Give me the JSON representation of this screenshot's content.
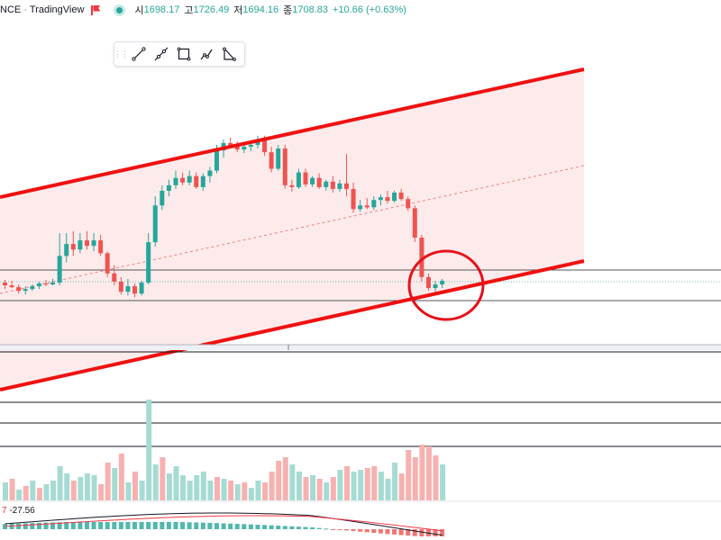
{
  "header": {
    "symbol_fragment": "NCE",
    "separator": "·",
    "source": "TradingView",
    "open_label": "시",
    "open_value": "1698.17",
    "high_label": "고",
    "high_value": "1726.49",
    "low_label": "저",
    "low_value": "1694.16",
    "close_label": "종",
    "close_value": "1708.83",
    "change": "+10.66 (+0.63%)"
  },
  "drawing_toolbar": {
    "tools": [
      "trend-line-icon",
      "ray-icon",
      "rectangle-icon",
      "path-icon",
      "triangle-icon"
    ]
  },
  "macd": {
    "prefix": "7",
    "value": "-27.56"
  },
  "colors": {
    "up": "#26a69a",
    "down": "#ef5350",
    "channel": "#ef1111",
    "channel_fill": "#fde7e7",
    "circle": "#e8101a"
  },
  "candles": [
    [
      1706,
      1709,
      1699,
      1703
    ],
    [
      1703,
      1708,
      1700,
      1701
    ],
    [
      1701,
      1704,
      1694,
      1697
    ],
    [
      1697,
      1702,
      1693,
      1699
    ],
    [
      1699,
      1704,
      1697,
      1702
    ],
    [
      1702,
      1707,
      1699,
      1705
    ],
    [
      1705,
      1709,
      1702,
      1704
    ],
    [
      1704,
      1710,
      1703,
      1706
    ],
    [
      1706,
      1760,
      1703,
      1735
    ],
    [
      1735,
      1760,
      1728,
      1748
    ],
    [
      1748,
      1762,
      1735,
      1742
    ],
    [
      1742,
      1760,
      1738,
      1752
    ],
    [
      1752,
      1762,
      1742,
      1746
    ],
    [
      1746,
      1760,
      1740,
      1752
    ],
    [
      1752,
      1758,
      1735,
      1738
    ],
    [
      1738,
      1740,
      1712,
      1716
    ],
    [
      1716,
      1725,
      1703,
      1707
    ],
    [
      1707,
      1712,
      1693,
      1696
    ],
    [
      1696,
      1710,
      1692,
      1702
    ],
    [
      1702,
      1705,
      1690,
      1694
    ],
    [
      1694,
      1708,
      1692,
      1706
    ],
    [
      1706,
      1760,
      1704,
      1750
    ],
    [
      1750,
      1800,
      1745,
      1790
    ],
    [
      1790,
      1812,
      1785,
      1806
    ],
    [
      1806,
      1818,
      1800,
      1812
    ],
    [
      1812,
      1828,
      1808,
      1820
    ],
    [
      1820,
      1826,
      1812,
      1815
    ],
    [
      1815,
      1828,
      1812,
      1822
    ],
    [
      1822,
      1826,
      1808,
      1810
    ],
    [
      1810,
      1825,
      1806,
      1822
    ],
    [
      1822,
      1832,
      1815,
      1828
    ],
    [
      1828,
      1856,
      1825,
      1850
    ],
    [
      1850,
      1862,
      1842,
      1858
    ],
    [
      1858,
      1864,
      1852,
      1855
    ],
    [
      1855,
      1860,
      1848,
      1851
    ],
    [
      1851,
      1858,
      1847,
      1854
    ],
    [
      1854,
      1860,
      1849,
      1856
    ],
    [
      1856,
      1866,
      1852,
      1862
    ],
    [
      1862,
      1866,
      1844,
      1848
    ],
    [
      1848,
      1854,
      1826,
      1830
    ],
    [
      1830,
      1856,
      1828,
      1852
    ],
    [
      1852,
      1856,
      1808,
      1812
    ],
    [
      1812,
      1818,
      1805,
      1810
    ],
    [
      1810,
      1830,
      1808,
      1826
    ],
    [
      1826,
      1830,
      1810,
      1813
    ],
    [
      1813,
      1822,
      1810,
      1820
    ],
    [
      1820,
      1825,
      1808,
      1810
    ],
    [
      1810,
      1818,
      1806,
      1816
    ],
    [
      1816,
      1822,
      1804,
      1808
    ],
    [
      1808,
      1818,
      1805,
      1814
    ],
    [
      1814,
      1846,
      1800,
      1808
    ],
    [
      1808,
      1815,
      1782,
      1786
    ],
    [
      1786,
      1796,
      1783,
      1790
    ],
    [
      1790,
      1798,
      1786,
      1788
    ],
    [
      1788,
      1800,
      1785,
      1796
    ],
    [
      1796,
      1802,
      1790,
      1799
    ],
    [
      1799,
      1806,
      1792,
      1795
    ],
    [
      1795,
      1806,
      1793,
      1804
    ],
    [
      1804,
      1808,
      1795,
      1797
    ],
    [
      1797,
      1800,
      1784,
      1787
    ],
    [
      1787,
      1790,
      1750,
      1755
    ],
    [
      1755,
      1758,
      1707,
      1712
    ],
    [
      1712,
      1716,
      1697,
      1700
    ],
    [
      1700,
      1708,
      1696,
      1704
    ],
    [
      1704,
      1710,
      1700,
      1708
    ]
  ],
  "volume": [
    [
      20,
      "u"
    ],
    [
      24,
      "d"
    ],
    [
      12,
      "u"
    ],
    [
      16,
      "d"
    ],
    [
      22,
      "u"
    ],
    [
      14,
      "d"
    ],
    [
      18,
      "u"
    ],
    [
      22,
      "u"
    ],
    [
      38,
      "u"
    ],
    [
      30,
      "u"
    ],
    [
      22,
      "d"
    ],
    [
      26,
      "u"
    ],
    [
      30,
      "u"
    ],
    [
      28,
      "u"
    ],
    [
      18,
      "d"
    ],
    [
      42,
      "d"
    ],
    [
      36,
      "u"
    ],
    [
      52,
      "d"
    ],
    [
      20,
      "u"
    ],
    [
      32,
      "d"
    ],
    [
      22,
      "u"
    ],
    [
      112,
      "u"
    ],
    [
      40,
      "u"
    ],
    [
      48,
      "d"
    ],
    [
      30,
      "u"
    ],
    [
      38,
      "u"
    ],
    [
      28,
      "u"
    ],
    [
      22,
      "u"
    ],
    [
      28,
      "u"
    ],
    [
      32,
      "u"
    ],
    [
      22,
      "u"
    ],
    [
      26,
      "d"
    ],
    [
      24,
      "u"
    ],
    [
      22,
      "d"
    ],
    [
      18,
      "u"
    ],
    [
      20,
      "d"
    ],
    [
      14,
      "u"
    ],
    [
      22,
      "u"
    ],
    [
      20,
      "d"
    ],
    [
      32,
      "d"
    ],
    [
      44,
      "d"
    ],
    [
      48,
      "d"
    ],
    [
      40,
      "u"
    ],
    [
      32,
      "u"
    ],
    [
      26,
      "d"
    ],
    [
      28,
      "u"
    ],
    [
      24,
      "d"
    ],
    [
      20,
      "u"
    ],
    [
      26,
      "d"
    ],
    [
      34,
      "u"
    ],
    [
      38,
      "d"
    ],
    [
      32,
      "u"
    ],
    [
      34,
      "u"
    ],
    [
      36,
      "d"
    ],
    [
      38,
      "d"
    ],
    [
      32,
      "u"
    ],
    [
      24,
      "u"
    ],
    [
      42,
      "u"
    ],
    [
      30,
      "d"
    ],
    [
      56,
      "d"
    ],
    [
      48,
      "d"
    ],
    [
      62,
      "d"
    ],
    [
      60,
      "d"
    ],
    [
      50,
      "d"
    ],
    [
      40,
      "u"
    ]
  ]
}
